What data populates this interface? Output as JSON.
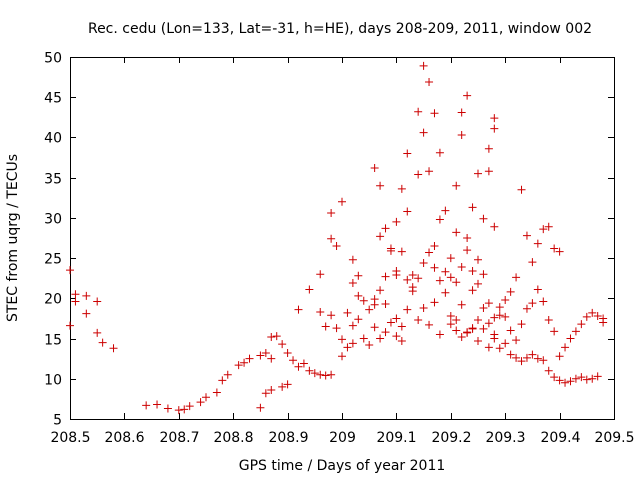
{
  "chart_data": {
    "type": "scatter",
    "title": "Rec. cedu (Lon=133, Lat=-31, h=HE), days 208-209, 2011, window 002",
    "xlabel": "GPS time / Days of year 2011",
    "ylabel": "STEC from uqrg / TECUs",
    "xlim": [
      208.5,
      209.5
    ],
    "ylim": [
      5,
      50
    ],
    "xticks": [
      208.5,
      208.6,
      208.7,
      208.8,
      208.9,
      209,
      209.1,
      209.2,
      209.3,
      209.4,
      209.5
    ],
    "xtick_labels": [
      "208.5",
      "208.6",
      "208.7",
      "208.8",
      "208.9",
      "209",
      "209.1",
      "209.2",
      "209.3",
      "209.4",
      "209.5"
    ],
    "yticks": [
      5,
      10,
      15,
      20,
      25,
      30,
      35,
      40,
      45,
      50
    ],
    "ytick_labels": [
      "5",
      "10",
      "15",
      "20",
      "25",
      "30",
      "35",
      "40",
      "45",
      "50"
    ],
    "grid": false,
    "legend": null,
    "marker": "+",
    "colors": {
      "points": "#cc0000",
      "axes": "#000000",
      "background": "#ffffff"
    },
    "series": [
      {
        "name": "STEC",
        "points": [
          [
            208.5,
            23.5
          ],
          [
            208.5,
            16.6
          ],
          [
            208.51,
            19.6
          ],
          [
            208.51,
            20.5
          ],
          [
            208.53,
            20.3
          ],
          [
            208.53,
            18.1
          ],
          [
            208.55,
            19.6
          ],
          [
            208.55,
            15.7
          ],
          [
            208.56,
            14.5
          ],
          [
            208.58,
            13.8
          ],
          [
            208.64,
            6.7
          ],
          [
            208.66,
            6.8
          ],
          [
            208.68,
            6.3
          ],
          [
            208.7,
            6.1
          ],
          [
            208.71,
            6.2
          ],
          [
            208.72,
            6.6
          ],
          [
            208.74,
            7.1
          ],
          [
            208.75,
            7.7
          ],
          [
            208.77,
            8.3
          ],
          [
            208.78,
            9.8
          ],
          [
            208.79,
            10.5
          ],
          [
            208.81,
            11.7
          ],
          [
            208.82,
            12.0
          ],
          [
            208.83,
            12.5
          ],
          [
            208.85,
            12.9
          ],
          [
            208.86,
            13.2
          ],
          [
            208.87,
            15.2
          ],
          [
            208.87,
            12.5
          ],
          [
            208.88,
            15.3
          ],
          [
            208.89,
            14.3
          ],
          [
            208.9,
            13.2
          ],
          [
            208.91,
            12.3
          ],
          [
            208.85,
            6.4
          ],
          [
            208.86,
            8.2
          ],
          [
            208.87,
            8.6
          ],
          [
            208.89,
            9.0
          ],
          [
            208.9,
            9.3
          ],
          [
            208.92,
            11.5
          ],
          [
            208.93,
            11.9
          ],
          [
            208.94,
            11.0
          ],
          [
            208.95,
            10.7
          ],
          [
            208.96,
            10.5
          ],
          [
            208.97,
            10.4
          ],
          [
            208.98,
            10.5
          ],
          [
            208.92,
            18.6
          ],
          [
            208.94,
            21.1
          ],
          [
            208.96,
            18.3
          ],
          [
            208.97,
            16.5
          ],
          [
            208.98,
            17.9
          ],
          [
            208.99,
            16.3
          ],
          [
            209.0,
            14.9
          ],
          [
            209.0,
            12.8
          ],
          [
            209.01,
            13.9
          ],
          [
            209.02,
            14.4
          ],
          [
            208.96,
            23.0
          ],
          [
            208.98,
            27.4
          ],
          [
            208.98,
            30.6
          ],
          [
            208.99,
            26.5
          ],
          [
            209.0,
            32.0
          ],
          [
            209.01,
            18.2
          ],
          [
            209.02,
            21.9
          ],
          [
            209.02,
            16.6
          ],
          [
            209.03,
            20.3
          ],
          [
            209.03,
            17.4
          ],
          [
            209.04,
            19.7
          ],
          [
            209.04,
            15.0
          ],
          [
            209.05,
            18.6
          ],
          [
            209.05,
            14.2
          ],
          [
            209.06,
            19.2
          ],
          [
            209.06,
            16.4
          ],
          [
            209.07,
            21.0
          ],
          [
            209.07,
            15.0
          ],
          [
            209.08,
            19.3
          ],
          [
            209.08,
            15.8
          ],
          [
            209.09,
            17.0
          ],
          [
            209.1,
            15.3
          ],
          [
            209.1,
            17.5
          ],
          [
            209.11,
            14.7
          ],
          [
            209.11,
            16.5
          ],
          [
            209.12,
            18.6
          ],
          [
            209.02,
            24.8
          ],
          [
            209.03,
            22.8
          ],
          [
            209.06,
            36.2
          ],
          [
            209.07,
            34.0
          ],
          [
            209.08,
            28.7
          ],
          [
            209.09,
            26.2
          ],
          [
            209.1,
            29.5
          ],
          [
            209.1,
            22.9
          ],
          [
            209.11,
            33.6
          ],
          [
            209.12,
            30.8
          ],
          [
            209.12,
            38.0
          ],
          [
            209.13,
            21.4
          ],
          [
            209.14,
            35.4
          ],
          [
            209.14,
            43.2
          ],
          [
            209.15,
            40.6
          ],
          [
            209.15,
            48.9
          ],
          [
            209.16,
            46.9
          ],
          [
            209.16,
            35.8
          ],
          [
            209.17,
            43.0
          ],
          [
            209.17,
            26.5
          ],
          [
            209.18,
            38.1
          ],
          [
            209.18,
            29.8
          ],
          [
            209.19,
            30.9
          ],
          [
            209.2,
            25.0
          ],
          [
            209.21,
            34.0
          ],
          [
            209.21,
            28.2
          ],
          [
            209.22,
            40.3
          ],
          [
            209.22,
            43.1
          ],
          [
            209.23,
            27.5
          ],
          [
            209.23,
            45.2
          ],
          [
            209.24,
            31.3
          ],
          [
            209.24,
            21.0
          ],
          [
            209.25,
            35.5
          ],
          [
            209.25,
            24.8
          ],
          [
            209.26,
            29.9
          ],
          [
            209.27,
            38.6
          ],
          [
            209.27,
            35.8
          ],
          [
            209.28,
            42.4
          ],
          [
            209.28,
            41.1
          ],
          [
            209.28,
            28.9
          ],
          [
            209.13,
            20.9
          ],
          [
            209.14,
            17.3
          ],
          [
            209.15,
            18.8
          ],
          [
            209.16,
            16.7
          ],
          [
            209.17,
            19.5
          ],
          [
            209.18,
            15.5
          ],
          [
            209.19,
            20.7
          ],
          [
            209.2,
            17.8
          ],
          [
            209.21,
            17.3
          ],
          [
            209.22,
            19.2
          ],
          [
            209.23,
            15.7
          ],
          [
            209.24,
            16.2
          ],
          [
            209.25,
            14.7
          ],
          [
            209.26,
            16.2
          ],
          [
            209.27,
            13.9
          ],
          [
            209.28,
            15.0
          ],
          [
            209.29,
            13.8
          ],
          [
            209.3,
            14.4
          ],
          [
            209.31,
            13.0
          ],
          [
            209.32,
            12.6
          ],
          [
            209.33,
            12.2
          ],
          [
            209.34,
            12.6
          ],
          [
            209.35,
            13.0
          ],
          [
            209.36,
            12.5
          ],
          [
            209.37,
            12.3
          ],
          [
            209.38,
            11.0
          ],
          [
            209.39,
            10.2
          ],
          [
            209.4,
            9.8
          ],
          [
            209.41,
            9.5
          ],
          [
            209.42,
            9.7
          ],
          [
            209.43,
            10.0
          ],
          [
            209.44,
            10.2
          ],
          [
            209.45,
            9.9
          ],
          [
            209.46,
            10.0
          ],
          [
            209.47,
            10.3
          ],
          [
            209.48,
            17.0
          ],
          [
            209.48,
            17.5
          ],
          [
            209.47,
            17.8
          ],
          [
            209.46,
            18.2
          ],
          [
            209.45,
            17.7
          ],
          [
            209.44,
            16.8
          ],
          [
            209.43,
            15.9
          ],
          [
            209.42,
            15.0
          ],
          [
            209.41,
            13.9
          ],
          [
            209.4,
            12.8
          ],
          [
            209.39,
            26.2
          ],
          [
            209.4,
            25.8
          ],
          [
            209.38,
            28.9
          ],
          [
            209.37,
            28.6
          ],
          [
            209.36,
            26.8
          ],
          [
            209.35,
            24.5
          ],
          [
            209.34,
            27.8
          ],
          [
            209.33,
            33.5
          ],
          [
            209.32,
            22.6
          ],
          [
            209.31,
            20.8
          ],
          [
            209.3,
            19.8
          ],
          [
            209.29,
            18.9
          ],
          [
            209.28,
            17.6
          ],
          [
            209.27,
            19.4
          ],
          [
            209.26,
            23.0
          ],
          [
            209.25,
            21.8
          ],
          [
            209.24,
            23.4
          ],
          [
            209.23,
            26.0
          ],
          [
            209.22,
            23.9
          ],
          [
            209.21,
            22.0
          ],
          [
            209.2,
            22.6
          ],
          [
            209.19,
            23.3
          ],
          [
            209.18,
            22.2
          ],
          [
            209.17,
            23.8
          ],
          [
            209.16,
            25.7
          ],
          [
            209.15,
            24.4
          ],
          [
            209.14,
            22.5
          ],
          [
            209.13,
            22.9
          ],
          [
            209.12,
            22.3
          ],
          [
            209.11,
            25.8
          ],
          [
            209.1,
            23.4
          ],
          [
            209.09,
            25.9
          ],
          [
            209.08,
            22.7
          ],
          [
            209.07,
            27.7
          ],
          [
            209.06,
            19.9
          ],
          [
            209.32,
            14.8
          ],
          [
            209.33,
            16.8
          ],
          [
            209.34,
            18.7
          ],
          [
            209.35,
            19.4
          ],
          [
            209.36,
            21.1
          ],
          [
            209.37,
            19.6
          ],
          [
            209.38,
            17.3
          ],
          [
            209.39,
            15.9
          ],
          [
            209.31,
            16.0
          ],
          [
            209.3,
            17.7
          ],
          [
            209.29,
            17.9
          ],
          [
            209.28,
            15.5
          ],
          [
            209.27,
            16.9
          ],
          [
            209.26,
            18.8
          ],
          [
            209.25,
            17.3
          ],
          [
            209.24,
            16.3
          ],
          [
            209.23,
            15.8
          ],
          [
            209.22,
            15.2
          ],
          [
            209.21,
            16.0
          ],
          [
            209.2,
            16.8
          ]
        ]
      }
    ]
  }
}
